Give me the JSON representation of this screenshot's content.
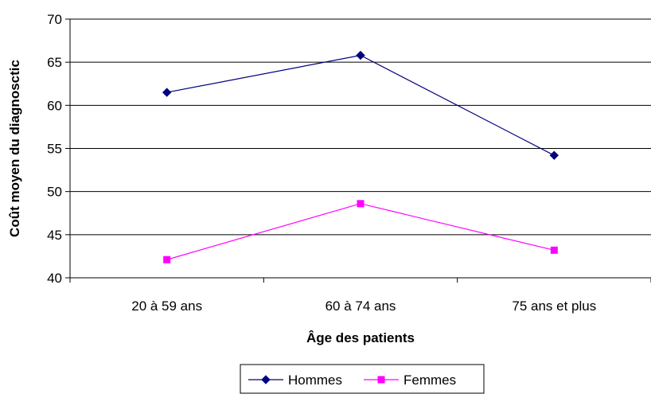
{
  "chart_data": {
    "type": "line",
    "categories": [
      "20 à 59 ans",
      "60 à 74 ans",
      "75 ans et plus"
    ],
    "series": [
      {
        "name": "Hommes",
        "values": [
          61.5,
          65.8,
          54.2
        ],
        "color": "#000080",
        "marker": "diamond"
      },
      {
        "name": "Femmes",
        "values": [
          42.1,
          48.6,
          43.2
        ],
        "color": "#FF00FF",
        "marker": "square"
      }
    ],
    "title": "",
    "xlabel": "Âge des patients",
    "ylabel": "Coût moyen du diagnosctic",
    "ylim": [
      40,
      70
    ],
    "yticks": [
      40,
      45,
      50,
      55,
      60,
      65,
      70
    ],
    "grid": true,
    "legend_position": "bottom"
  }
}
